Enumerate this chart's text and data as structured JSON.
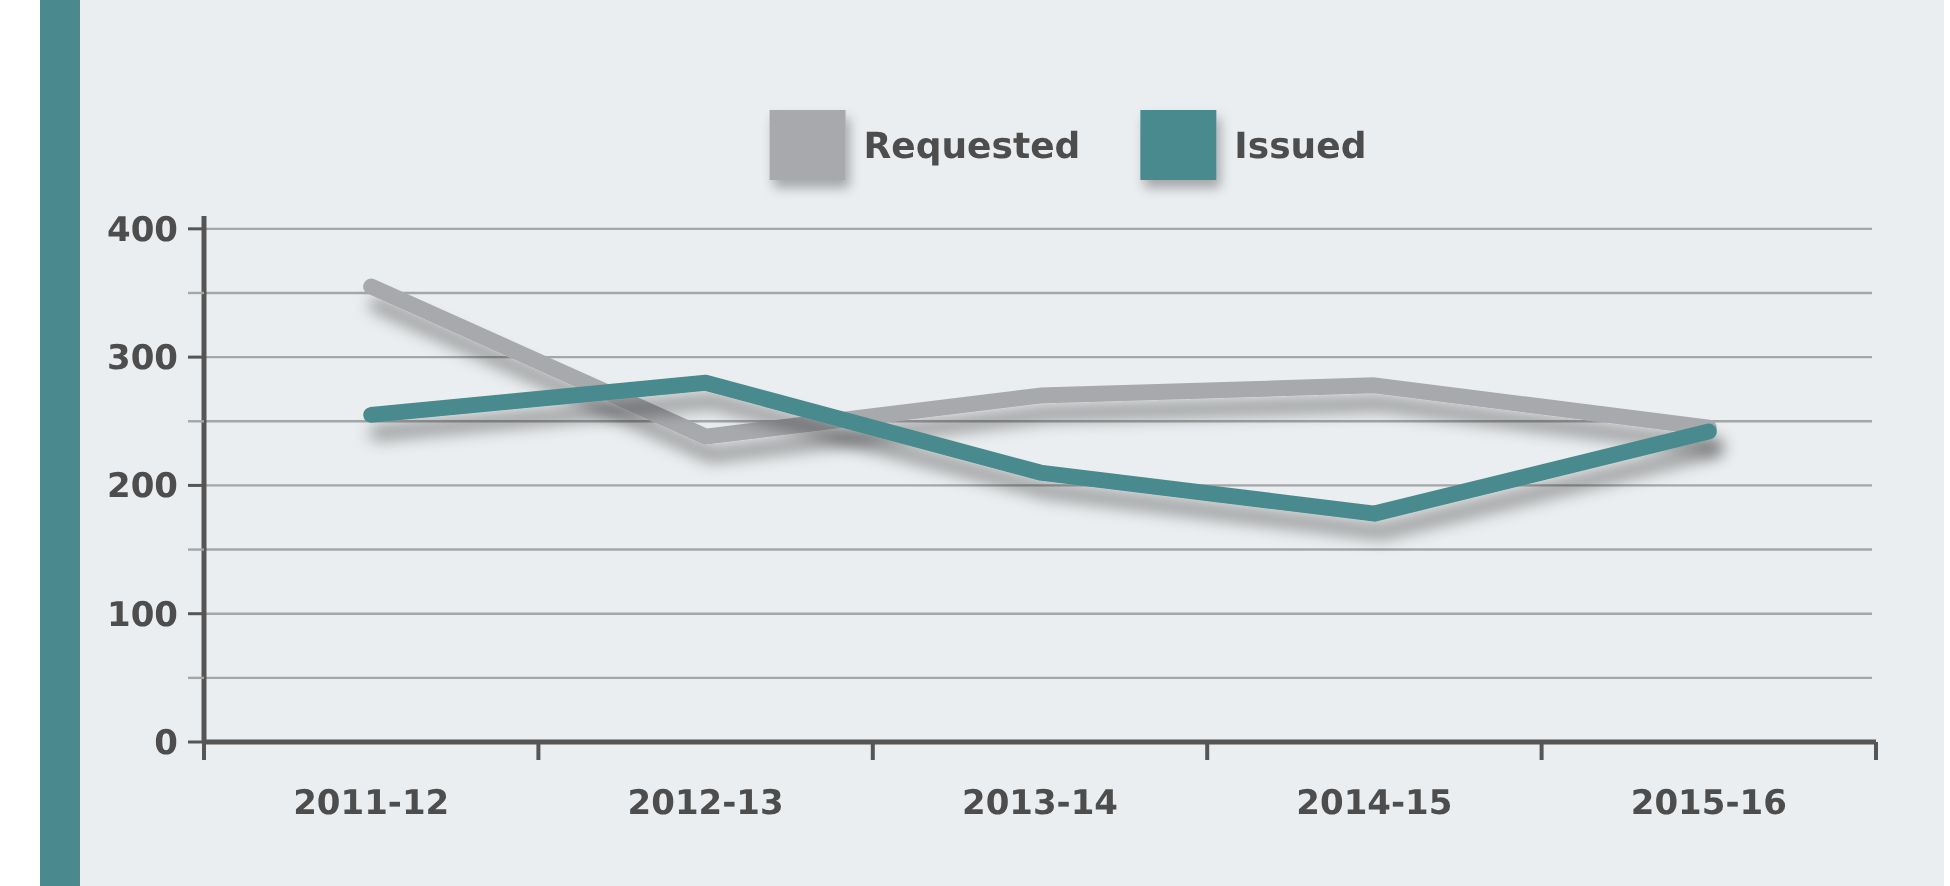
{
  "chart_data": {
    "type": "line",
    "categories": [
      "2011-12",
      "2012-13",
      "2013-14",
      "2014-15",
      "2015-16"
    ],
    "series": [
      {
        "name": "Requested",
        "color": "#a8a9ad",
        "values": [
          355,
          238,
          270,
          278,
          245
        ]
      },
      {
        "name": "Issued",
        "color": "#4a8a8f",
        "values": [
          255,
          280,
          210,
          178,
          242
        ]
      }
    ],
    "ylim": [
      0,
      410
    ],
    "yticks": [
      0,
      {
        "value": 50,
        "label": null
      },
      100,
      {
        "value": 150,
        "label": null
      },
      200,
      {
        "value": 250,
        "label": null
      },
      300,
      {
        "value": 350,
        "label": null
      },
      400
    ],
    "grid": true,
    "legend": "top"
  }
}
